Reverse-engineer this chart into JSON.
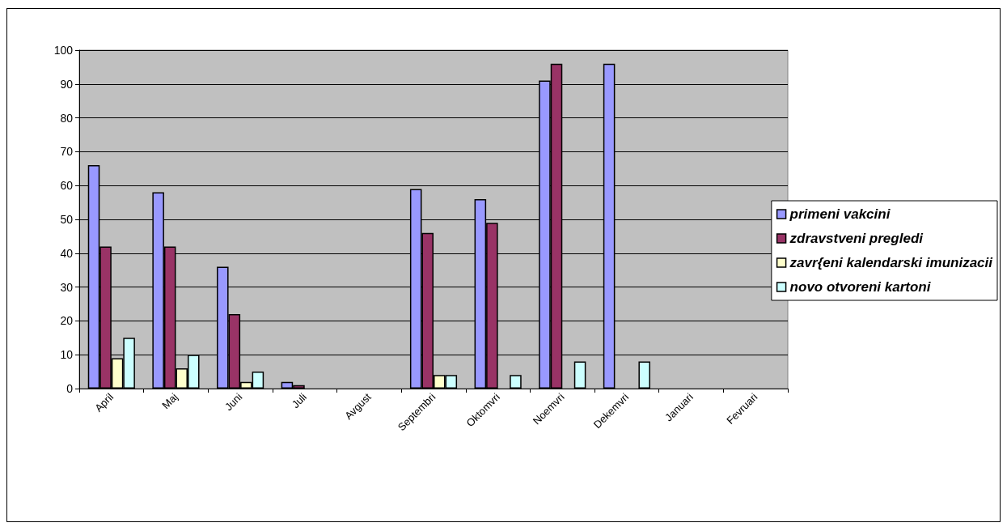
{
  "chart_data": {
    "type": "bar",
    "categories": [
      "April",
      "Maj",
      "Juni",
      "Juli",
      "Avgust",
      "Septembri",
      "Oktomvri",
      "Noemvri",
      "Dekemvri",
      "Januari",
      "Fevruari"
    ],
    "series": [
      {
        "name": "primeni vakcini",
        "color": "#9999ff",
        "values": [
          66,
          58,
          36,
          2,
          0,
          59,
          56,
          91,
          96,
          0,
          0
        ]
      },
      {
        "name": "zdravstveni pregledi",
        "color": "#993366",
        "values": [
          42,
          42,
          22,
          1,
          0,
          46,
          49,
          96,
          0,
          0,
          0
        ]
      },
      {
        "name": "zavr{eni kalendarski imunizacii",
        "color": "#ffffcc",
        "values": [
          9,
          6,
          2,
          0,
          0,
          4,
          0,
          0,
          0,
          0,
          0
        ]
      },
      {
        "name": "novo otvoreni kartoni",
        "color": "#ccffff",
        "values": [
          15,
          10,
          5,
          0,
          0,
          4,
          4,
          8,
          8,
          0,
          0
        ]
      }
    ],
    "ylim": [
      0,
      100
    ],
    "yticks": [
      0,
      10,
      20,
      30,
      40,
      50,
      60,
      70,
      80,
      90,
      100
    ],
    "grid": "y",
    "legend": "right"
  }
}
